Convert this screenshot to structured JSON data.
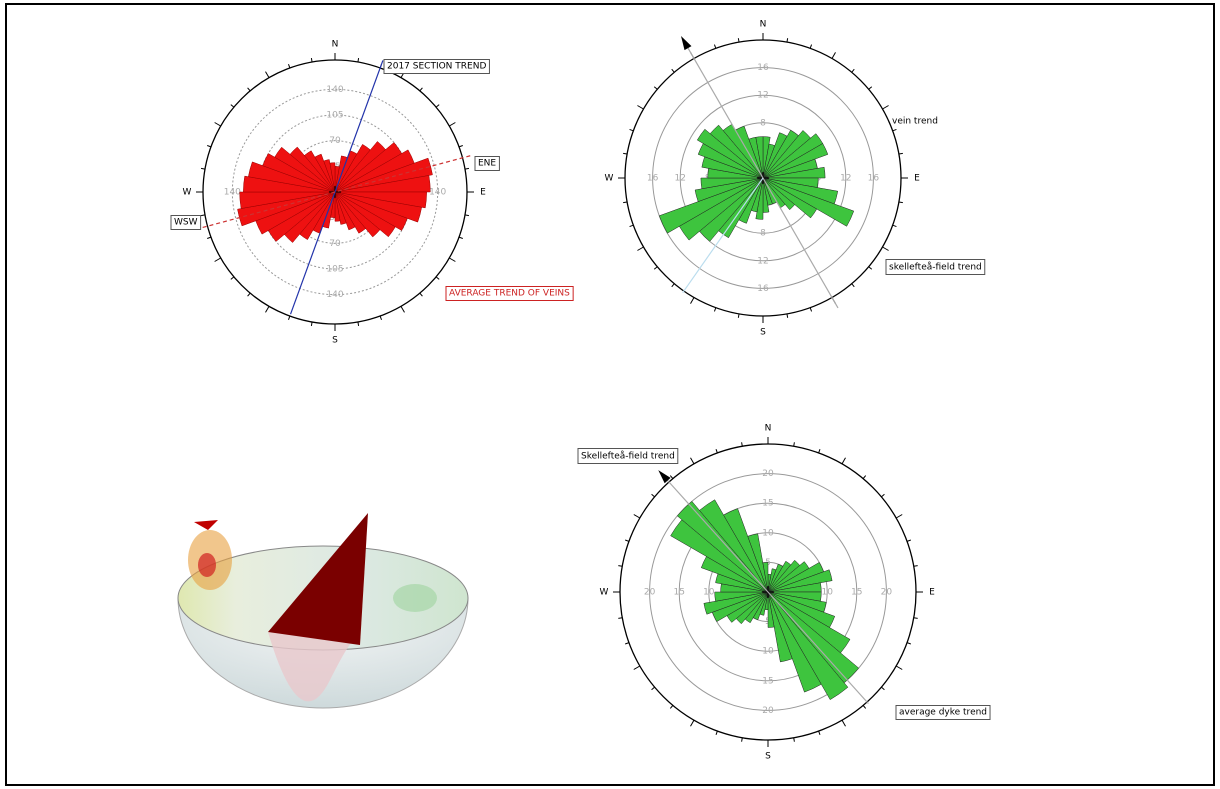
{
  "chart_data": [
    {
      "type": "rose",
      "color": "#ee1111",
      "directions": [
        "N",
        "E",
        "S",
        "W"
      ],
      "annotations": [
        "2017 SECTION TREND",
        "ENE",
        "WSW",
        "AVERAGE TREND OF VEINS"
      ],
      "ylim": [
        0,
        180
      ],
      "yticks": [
        35,
        70,
        105,
        140
      ],
      "values": [
        35,
        50,
        60,
        75,
        90,
        105,
        115,
        135,
        130,
        125,
        120,
        105,
        95,
        80,
        65,
        55,
        45,
        40,
        35,
        50,
        60,
        75,
        90,
        105,
        115,
        135,
        130,
        125,
        120,
        105,
        95,
        80,
        65,
        55,
        45,
        40
      ]
    },
    {
      "type": "rose",
      "color": "#3ec43e",
      "directions": [
        "N",
        "E",
        "S",
        "W"
      ],
      "annotations": [
        "vein trend",
        "skellefteå-field trend"
      ],
      "ylim": [
        0,
        20
      ],
      "yticks": [
        4,
        8,
        12,
        16
      ],
      "values": [
        6,
        5,
        7,
        8,
        9,
        10,
        10,
        8,
        9,
        8,
        11,
        14,
        9,
        6,
        5,
        4,
        4,
        5,
        6,
        5,
        7,
        10,
        12,
        14,
        16,
        10,
        9,
        8,
        9,
        10,
        11,
        10,
        9,
        8,
        6,
        6
      ]
    },
    {
      "type": "rose",
      "color": "#3ec43e",
      "directions": [
        "N",
        "E",
        "S",
        "W"
      ],
      "annotations": [
        "Skellefteå-field trend",
        "average dyke trend"
      ],
      "ylim": [
        0,
        25
      ],
      "yticks": [
        5,
        10,
        15,
        20
      ],
      "values": [
        3,
        4,
        5,
        6,
        7,
        8,
        10,
        11,
        9,
        9,
        10,
        12,
        16,
        20,
        21,
        18,
        12,
        6,
        3,
        4,
        5,
        6,
        7,
        8,
        10,
        11,
        9,
        8,
        9,
        12,
        19,
        20,
        18,
        15,
        10,
        5
      ]
    }
  ]
}
